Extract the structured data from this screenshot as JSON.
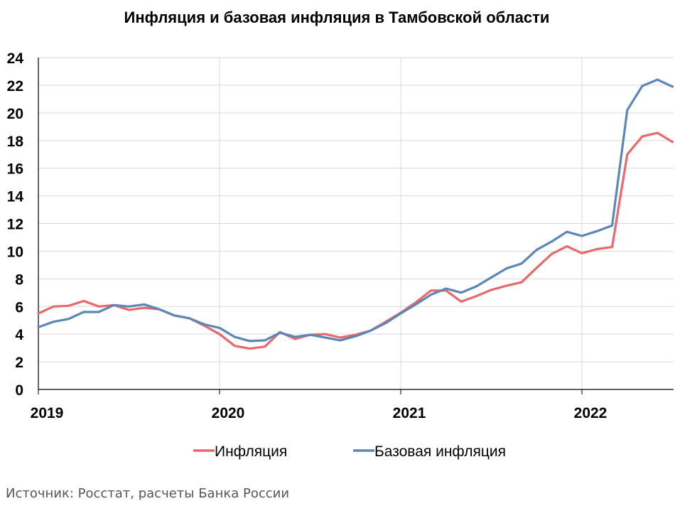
{
  "chart_data": {
    "type": "line",
    "title": "Инфляция и базовая инфляция в Тамбовской области",
    "xlabel": "",
    "ylabel": "",
    "x_start": "2019-01",
    "x_tick_labels": [
      "2019",
      "2020",
      "2021",
      "2022"
    ],
    "ylim": [
      0,
      24
    ],
    "y_ticks": [
      0,
      2,
      4,
      6,
      8,
      10,
      12,
      14,
      16,
      18,
      20,
      22,
      24
    ],
    "grid": true,
    "legend_position": "bottom",
    "series": [
      {
        "name": "Инфляция",
        "color": "#e8686b",
        "values": [
          5.5,
          6.0,
          6.05,
          6.4,
          6.0,
          6.1,
          5.75,
          5.9,
          5.8,
          5.35,
          5.15,
          4.6,
          4.0,
          3.15,
          2.95,
          3.1,
          4.15,
          3.65,
          3.95,
          4.0,
          3.75,
          3.95,
          4.25,
          4.9,
          5.55,
          6.3,
          7.15,
          7.15,
          6.35,
          6.75,
          7.2,
          7.5,
          7.75,
          8.8,
          9.8,
          10.35,
          9.85,
          10.15,
          10.3,
          17.0,
          18.3,
          18.55,
          17.9
        ]
      },
      {
        "name": "Базовая инфляция",
        "color": "#5b87b8",
        "values": [
          4.5,
          4.9,
          5.1,
          5.6,
          5.6,
          6.1,
          6.0,
          6.15,
          5.8,
          5.35,
          5.15,
          4.7,
          4.45,
          3.8,
          3.5,
          3.55,
          4.1,
          3.8,
          3.95,
          3.75,
          3.55,
          3.85,
          4.25,
          4.8,
          5.5,
          6.15,
          6.85,
          7.3,
          7.0,
          7.45,
          8.1,
          8.75,
          9.1,
          10.1,
          10.7,
          11.4,
          11.1,
          11.45,
          11.85,
          20.2,
          21.95,
          22.4,
          21.9
        ]
      }
    ]
  },
  "source_text": "Источник: Росстат, расчеты Банка России"
}
